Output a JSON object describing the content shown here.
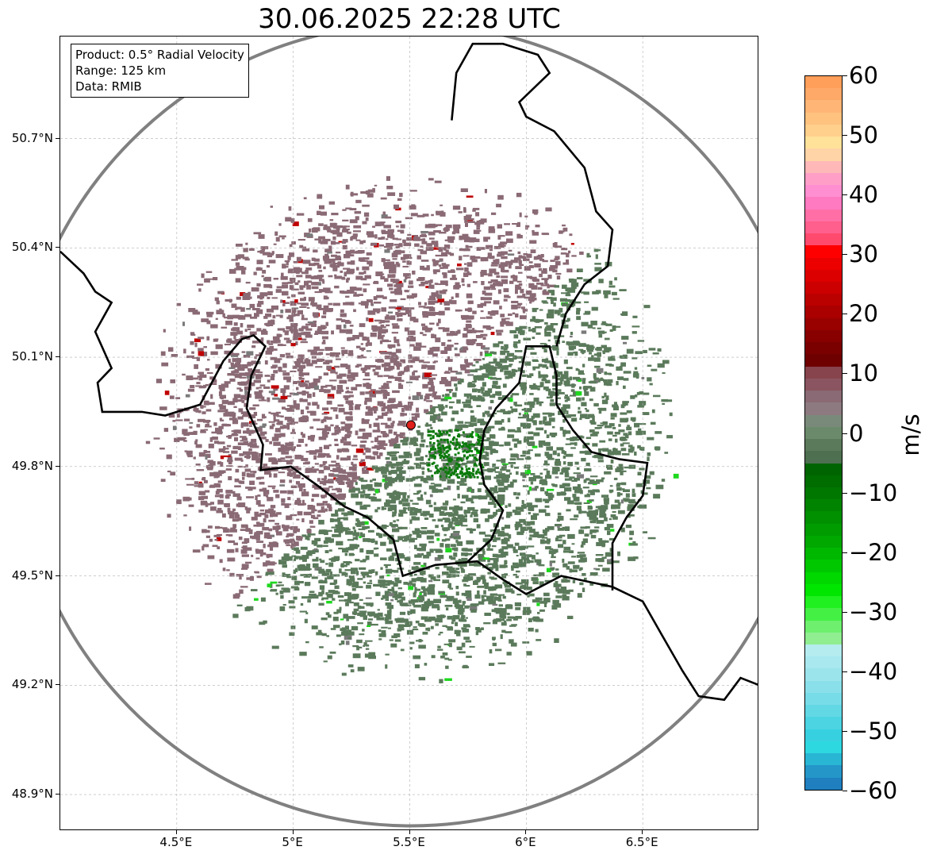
{
  "title": "30.06.2025 22:28 UTC",
  "info": {
    "product": "Product: 0.5° Radial Velocity",
    "range": "Range: 125 km",
    "data": "Data: RMIB"
  },
  "map": {
    "lon_range": [
      4.0,
      7.0
    ],
    "lat_range": [
      48.8,
      50.98
    ],
    "radar_site": {
      "lon": 5.505,
      "lat": 49.914
    },
    "y_ticks": [
      "50.7°N",
      "50.4°N",
      "50.1°N",
      "49.8°N",
      "49.5°N",
      "49.2°N",
      "48.9°N"
    ],
    "y_tick_values": [
      50.7,
      50.4,
      50.1,
      49.8,
      49.5,
      49.2,
      48.9
    ],
    "x_ticks": [
      "4.5°E",
      "5°E",
      "5.5°E",
      "6°E",
      "6.5°E"
    ],
    "x_tick_values": [
      4.5,
      5.0,
      5.5,
      6.0,
      6.5
    ],
    "gridlines": true,
    "range_ring_color": "#808080",
    "border_color": "#000000",
    "inbound_color": "#5b7a5b",
    "outbound_color": "#8a6a74",
    "site_marker_color": "#e0201c"
  },
  "colorbar": {
    "unit": "m/s",
    "min": -60,
    "max": 60,
    "tick_labels": [
      "60",
      "50",
      "40",
      "30",
      "20",
      "10",
      "0",
      "−10",
      "−20",
      "−30",
      "−40",
      "−50",
      "−60"
    ],
    "tick_values": [
      60,
      50,
      40,
      30,
      20,
      10,
      0,
      -10,
      -20,
      -30,
      -40,
      -50,
      -60
    ],
    "colors_top_to_bottom": [
      "#ff9f5a",
      "#ffa968",
      "#ffb575",
      "#ffc27f",
      "#ffd08c",
      "#ffe29a",
      "#ffd4a6",
      "#ffb8b8",
      "#ff9fc8",
      "#ff8fd0",
      "#ff7ac0",
      "#ff6fa6",
      "#ff5f8c",
      "#ff4a6e",
      "#ff0000",
      "#ec0000",
      "#dc0000",
      "#cc0000",
      "#bb0000",
      "#aa0000",
      "#990000",
      "#880000",
      "#7a0000",
      "#6e0000",
      "#87444c",
      "#8a5560",
      "#8a6a74",
      "#8c7a80",
      "#7a8a7a",
      "#6b8a6b",
      "#5b7a5b",
      "#4e7050",
      "#006400",
      "#006d00",
      "#007800",
      "#008400",
      "#009000",
      "#009c00",
      "#00a800",
      "#00b800",
      "#00c800",
      "#00d800",
      "#00e600",
      "#20f020",
      "#45f045",
      "#6ef06e",
      "#90ee90",
      "#b5ecf0",
      "#a8e8ee",
      "#9be4ec",
      "#8ae0ea",
      "#78dce8",
      "#62d8e4",
      "#4cd4e2",
      "#36d0e0",
      "#2ed8e0",
      "#28b6d4",
      "#2496c8",
      "#1f7fbf"
    ]
  }
}
